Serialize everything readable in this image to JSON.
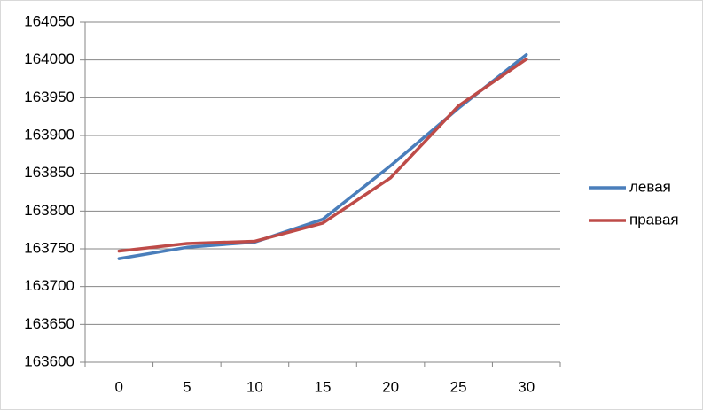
{
  "chart_data": {
    "type": "line",
    "categories": [
      "0",
      "5",
      "10",
      "15",
      "20",
      "25",
      "30"
    ],
    "series": [
      {
        "name": "левая",
        "color": "#4a7ebb",
        "values": [
          163737,
          163752,
          163759,
          163789,
          163860,
          163936,
          164007
        ]
      },
      {
        "name": "правая",
        "color": "#be4b48",
        "values": [
          163747,
          163757,
          163760,
          163784,
          163844,
          163939,
          164001
        ]
      }
    ],
    "ylim": [
      163600,
      164050
    ],
    "yticks": [
      163600,
      163650,
      163700,
      163750,
      163800,
      163850,
      163900,
      163950,
      164000,
      164050
    ],
    "grid": true,
    "legend": "right"
  }
}
